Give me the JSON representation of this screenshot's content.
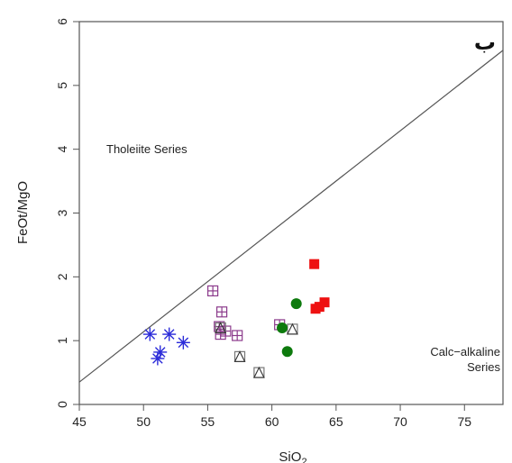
{
  "chart_data": {
    "type": "scatter",
    "corner_label": "ب",
    "xlabel_main": "SiO",
    "xlabel_sub": "2",
    "ylabel": "FeOt/MgO",
    "xlim": [
      45,
      78
    ],
    "ylim": [
      0,
      6
    ],
    "xticks": [
      "45",
      "50",
      "55",
      "60",
      "65",
      "70",
      "75"
    ],
    "yticks": [
      "0",
      "1",
      "2",
      "3",
      "4",
      "5",
      "6"
    ],
    "divider_line": {
      "x": [
        45,
        78
      ],
      "y": [
        0.35,
        5.55
      ]
    },
    "annotations": {
      "tholeiite": "Tholeiite Series",
      "calc_alkaline_1": "Calc−alkaline",
      "calc_alkaline_2": "Series"
    },
    "series": [
      {
        "marker": "asterisk",
        "color": "#2b2bd9",
        "points": [
          [
            50.5,
            1.1
          ],
          [
            52.0,
            1.1
          ],
          [
            53.1,
            0.97
          ],
          [
            51.3,
            0.82
          ],
          [
            51.1,
            0.72
          ]
        ]
      },
      {
        "marker": "square-plus",
        "color": "#8b3a8b",
        "points": [
          [
            55.4,
            1.78
          ],
          [
            56.1,
            1.45
          ],
          [
            55.9,
            1.22
          ],
          [
            56.0,
            1.1
          ],
          [
            56.4,
            1.15
          ],
          [
            57.3,
            1.08
          ],
          [
            60.6,
            1.25
          ]
        ]
      },
      {
        "marker": "square-triangle",
        "color": "#777777",
        "points": [
          [
            56.0,
            1.2
          ],
          [
            57.5,
            0.75
          ],
          [
            59.0,
            0.5
          ],
          [
            61.6,
            1.18
          ]
        ]
      },
      {
        "marker": "circle-filled",
        "color": "#0d7a0d",
        "points": [
          [
            61.9,
            1.58
          ],
          [
            60.8,
            1.2
          ],
          [
            61.2,
            0.83
          ]
        ]
      },
      {
        "marker": "square-filled",
        "color": "#ee1111",
        "points": [
          [
            63.3,
            2.2
          ],
          [
            64.1,
            1.6
          ],
          [
            63.4,
            1.5
          ],
          [
            63.7,
            1.53
          ]
        ]
      }
    ]
  }
}
